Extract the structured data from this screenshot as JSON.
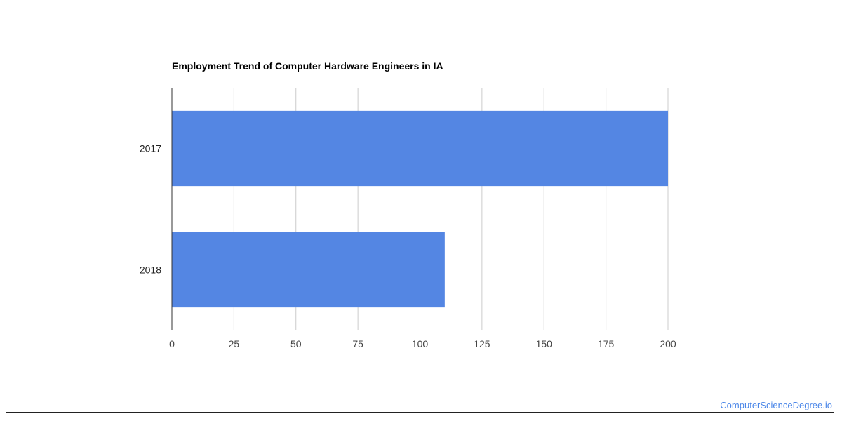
{
  "chart_data": {
    "type": "bar",
    "orientation": "horizontal",
    "title": "Employment Trend of Computer Hardware Engineers in IA",
    "categories": [
      "2017",
      "2018"
    ],
    "values": [
      200,
      110
    ],
    "xlim": [
      0,
      200
    ],
    "xticks": [
      0,
      25,
      50,
      75,
      100,
      125,
      150,
      175,
      200
    ],
    "xlabel": "",
    "ylabel": "",
    "grid": "vertical",
    "legend": "none",
    "bar_color": "#5486e3"
  },
  "watermark": "ComputerScienceDegree.io"
}
